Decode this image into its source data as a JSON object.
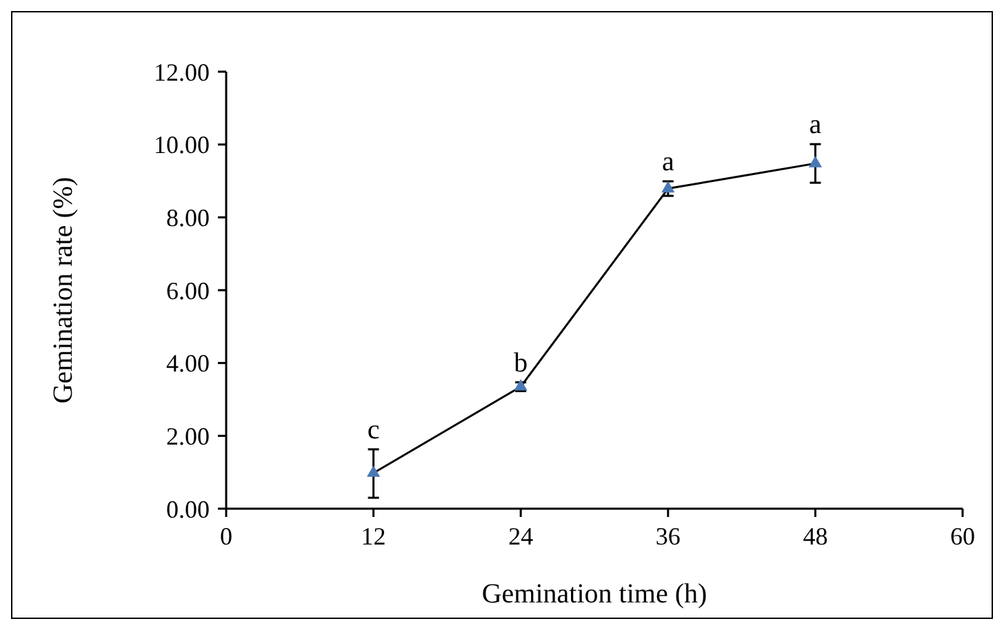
{
  "chart_data": {
    "type": "line",
    "xlabel": "Gemination time (h)",
    "ylabel": "Gemination rate  (%)",
    "x": [
      12,
      24,
      36,
      48
    ],
    "series": [
      {
        "color": "#4a78b4",
        "values": [
          0.98,
          3.35,
          8.79,
          9.48
        ],
        "errors": [
          [
            0.3,
            1.63
          ],
          0.12,
          0.2,
          0.53
        ]
      }
    ],
    "xlim": [
      0,
      60
    ],
    "xticks": [
      0,
      12,
      24,
      36,
      48,
      60
    ],
    "ylim": [
      0,
      12
    ],
    "yticks": [
      {
        "value": 0,
        "label": "0.00"
      },
      {
        "value": 2,
        "label": "2.00"
      },
      {
        "value": 4,
        "label": "4.00"
      },
      {
        "value": 6,
        "label": "6.00"
      },
      {
        "value": 8,
        "label": "8.00"
      },
      {
        "value": 10,
        "label": "10.00"
      },
      {
        "value": 12,
        "label": "12.00"
      }
    ],
    "annotations": [
      {
        "text": "c",
        "x": 12,
        "y": 1.63
      },
      {
        "text": "b",
        "x": 24,
        "y": 3.47
      },
      {
        "text": "a",
        "x": 36,
        "y": 8.99
      },
      {
        "text": "a",
        "x": 48,
        "y": 10.01
      }
    ],
    "marker": "triangle",
    "line_style": "solid",
    "grid": false
  }
}
